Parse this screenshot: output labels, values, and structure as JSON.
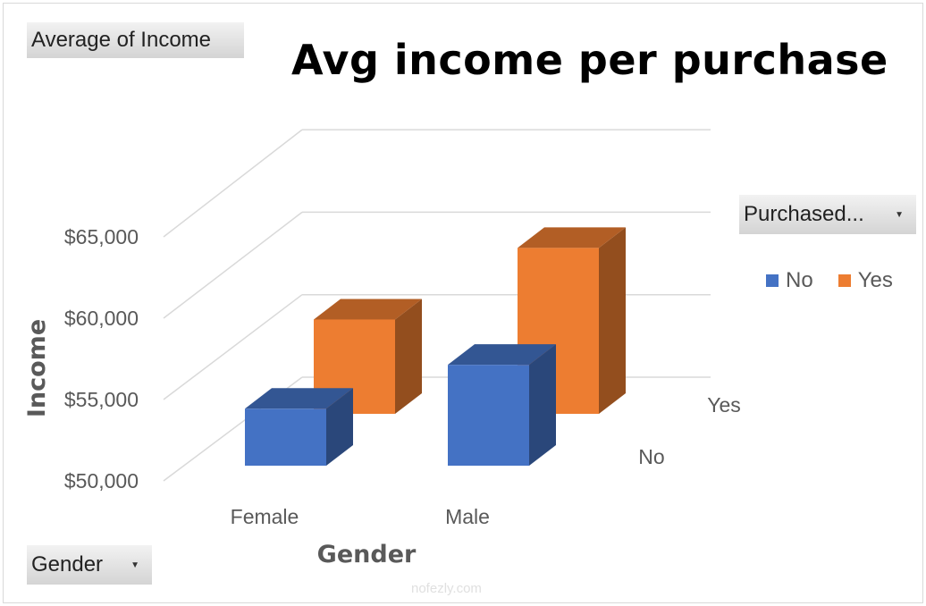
{
  "filters": {
    "values_field": "Average of Income",
    "legend_field": "Purchased...",
    "axis_field": "Gender"
  },
  "watermark": "nofezly.com",
  "chart_data": {
    "type": "bar",
    "subtype": "3d-column",
    "title": "Avg income per purchase",
    "xlabel": "Gender",
    "ylabel": "Income",
    "categories": [
      "Female",
      "Male"
    ],
    "depth_labels": [
      "No",
      "Yes"
    ],
    "yticks": [
      "$50,000",
      "$55,000",
      "$60,000",
      "$65,000"
    ],
    "ylim": [
      50000,
      65000
    ],
    "grid": true,
    "legend_position": "right",
    "series": [
      {
        "name": "No",
        "color": "#4472c4",
        "values": [
          53500,
          56200
        ]
      },
      {
        "name": "Yes",
        "color": "#ed7d31",
        "values": [
          55800,
          60200
        ]
      }
    ]
  }
}
